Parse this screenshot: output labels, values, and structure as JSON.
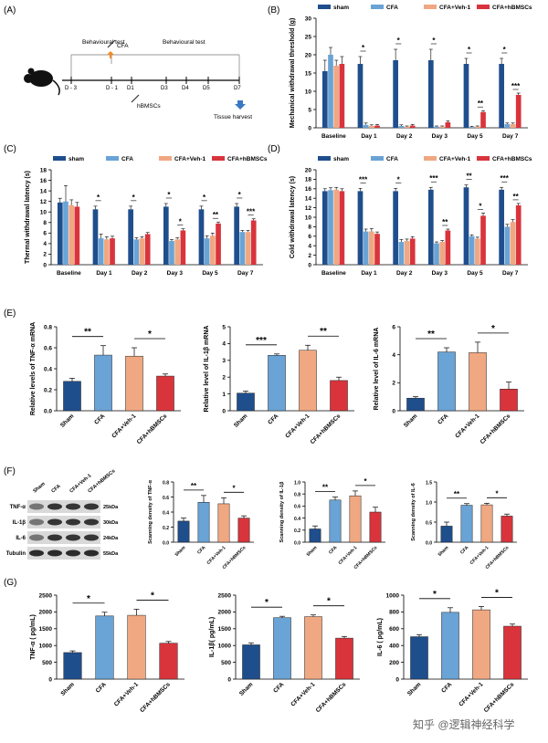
{
  "panels": {
    "a": "(A)",
    "b": "(B)",
    "c": "(C)",
    "d": "(D)",
    "e": "(E)",
    "f": "(F)",
    "g": "(G)"
  },
  "colors": {
    "sham": "#1f4e8c",
    "cfa": "#6aa3d5",
    "veh": "#f0a882",
    "hb": "#d9343c"
  },
  "timeline": {
    "behav1": "Behavioural test",
    "behav2": "Behavioural test",
    "cfa": "CFA",
    "hb": "hBMSCs",
    "harvest": "Tissue harvest",
    "days": [
      "D - 3",
      "D - 1",
      "D1",
      "D3",
      "D4",
      "D5",
      "D7"
    ]
  },
  "western": {
    "lanes": [
      "Sham",
      "CFA",
      "CFA+Veh-1",
      "CFA+hBMSCs"
    ],
    "bands": [
      {
        "name": "TNF-α",
        "size": "25kDa"
      },
      {
        "name": "IL-1β",
        "size": "30kDa"
      },
      {
        "name": "IL-6",
        "size": "24kDa"
      },
      {
        "name": "Tubulin",
        "size": "55kDa"
      }
    ]
  },
  "watermark": "知乎 @逻辑神经科学",
  "chart_data": [
    {
      "id": "B",
      "type": "bar",
      "legend": [
        "sham",
        "CFA",
        "CFA+Veh-1",
        "CFA+hBMSCs"
      ],
      "categories": [
        "Baseline",
        "Day 1",
        "Day 2",
        "Day 3",
        "Day 5",
        "Day 7"
      ],
      "ylabel": "Mechanical withdrawal threshold (g)",
      "ylim": [
        0,
        30
      ],
      "yticks": [
        0,
        5,
        10,
        15,
        20,
        25,
        30
      ],
      "series": [
        {
          "name": "sham",
          "values": [
            15.5,
            17.5,
            18.5,
            18.5,
            17.5,
            17.5
          ]
        },
        {
          "name": "CFA",
          "values": [
            20,
            0.8,
            0.5,
            0.3,
            0.2,
            1
          ]
        },
        {
          "name": "CFA+Veh-1",
          "values": [
            17,
            0.5,
            0.3,
            0.3,
            0.3,
            1
          ]
        },
        {
          "name": "CFA+hBMSCs",
          "values": [
            17.5,
            0.6,
            0.6,
            1.5,
            4.3,
            9
          ]
        }
      ],
      "errors": [
        [
          3,
          2,
          3,
          3,
          1.5,
          1.5
        ],
        [
          2,
          0.5,
          0.3,
          0.2,
          0.2,
          0.3
        ],
        [
          1.5,
          0.3,
          0.2,
          0.2,
          0.2,
          0.3
        ],
        [
          2,
          0.3,
          0.3,
          0.4,
          0.4,
          0.5
        ]
      ],
      "annotations": [
        {
          "cat": 1,
          "text": "*"
        },
        {
          "cat": 2,
          "text": "*"
        },
        {
          "cat": 3,
          "text": "*"
        },
        {
          "cat": 4,
          "text": "*"
        },
        {
          "cat": 4,
          "text": "**",
          "hb": true
        },
        {
          "cat": 5,
          "text": "*"
        },
        {
          "cat": 5,
          "text": "***",
          "hb": true
        }
      ]
    },
    {
      "id": "C",
      "type": "bar",
      "legend": [
        "sham",
        "CFA",
        "CFA+Veh-1",
        "CFA+hBMSCs"
      ],
      "categories": [
        "Baseline",
        "Day 1",
        "Day 2",
        "Day 3",
        "Day 5",
        "Day 7"
      ],
      "ylabel": "Thermal withdrawal latency (s)",
      "ylim": [
        0,
        18
      ],
      "yticks": [
        0,
        2,
        4,
        6,
        8,
        10,
        12,
        14,
        16,
        18
      ],
      "series": [
        {
          "name": "sham",
          "values": [
            11.8,
            10.5,
            10.5,
            11,
            10.5,
            11
          ]
        },
        {
          "name": "CFA",
          "values": [
            12,
            5,
            4.8,
            4.5,
            5,
            6.2
          ]
        },
        {
          "name": "CFA+Veh-1",
          "values": [
            11.3,
            4.8,
            5,
            4.8,
            5.5,
            6.2
          ]
        },
        {
          "name": "CFA+hBMSCs",
          "values": [
            11,
            5,
            5.8,
            6.5,
            7.8,
            8.4
          ]
        }
      ],
      "errors": [
        [
          0.8,
          0.6,
          0.6,
          0.6,
          0.6,
          0.6
        ],
        [
          3,
          0.8,
          0.3,
          0.3,
          0.5,
          0.3
        ],
        [
          1,
          0.5,
          0.3,
          0.3,
          0.5,
          0.3
        ],
        [
          0.8,
          0.4,
          0.3,
          0.3,
          0.3,
          0.3
        ]
      ],
      "annotations": [
        {
          "cat": 1,
          "text": "*"
        },
        {
          "cat": 2,
          "text": "*"
        },
        {
          "cat": 3,
          "text": "*"
        },
        {
          "cat": 3,
          "text": "*",
          "hb": true
        },
        {
          "cat": 4,
          "text": "*"
        },
        {
          "cat": 4,
          "text": "**",
          "hb": true
        },
        {
          "cat": 5,
          "text": "*"
        },
        {
          "cat": 5,
          "text": "***",
          "hb": true
        }
      ]
    },
    {
      "id": "D",
      "type": "bar",
      "legend": [
        "sham",
        "CFA",
        "CFA+Veh-1",
        "CFA+hBMSCs"
      ],
      "categories": [
        "Baseline",
        "Day 1",
        "Day 2",
        "Day 3",
        "Day 5",
        "Day 7"
      ],
      "ylabel": "Cold withdrawal latency (s)",
      "ylim": [
        0,
        20
      ],
      "yticks": [
        0,
        2,
        4,
        6,
        8,
        10,
        12,
        14,
        16,
        18,
        20
      ],
      "series": [
        {
          "name": "sham",
          "values": [
            15.5,
            15.5,
            15.5,
            15.8,
            16.3,
            15.8
          ]
        },
        {
          "name": "CFA",
          "values": [
            15.7,
            7,
            4.8,
            4.5,
            6,
            8
          ]
        },
        {
          "name": "CFA+Veh-1",
          "values": [
            15.8,
            7,
            5,
            4.8,
            5.5,
            9
          ]
        },
        {
          "name": "CFA+hBMSCs",
          "values": [
            15.5,
            6.5,
            5.5,
            7.2,
            10.3,
            12.5
          ]
        }
      ],
      "errors": [
        [
          0.5,
          0.6,
          0.6,
          0.5,
          0.5,
          0.5
        ],
        [
          0.5,
          0.5,
          0.5,
          0.3,
          0.3,
          0.5
        ],
        [
          0.5,
          0.6,
          0.4,
          0.3,
          0.3,
          0.5
        ],
        [
          0.5,
          0.4,
          0.4,
          0.3,
          0.6,
          0.4
        ]
      ],
      "annotations": [
        {
          "cat": 1,
          "text": "***"
        },
        {
          "cat": 2,
          "text": "*"
        },
        {
          "cat": 3,
          "text": "***"
        },
        {
          "cat": 3,
          "text": "**",
          "hb": true
        },
        {
          "cat": 4,
          "text": "**"
        },
        {
          "cat": 4,
          "text": "*",
          "hb": true
        },
        {
          "cat": 5,
          "text": "***"
        },
        {
          "cat": 5,
          "text": "**",
          "hb": true
        }
      ]
    },
    {
      "id": "E1",
      "type": "bar",
      "categories": [
        "Sham",
        "CFA",
        "CFA+Veh-1",
        "CFA+hBMSCs"
      ],
      "ylabel": "Relative levels of TNF-α mRNA",
      "ylim": [
        0,
        0.8
      ],
      "yticks": [
        0,
        0.2,
        0.4,
        0.6,
        0.8
      ],
      "tickFmt": 1,
      "values": [
        0.28,
        0.53,
        0.52,
        0.33
      ],
      "errors": [
        0.03,
        0.09,
        0.08,
        0.02
      ],
      "brackets": [
        {
          "a": 0,
          "b": 1,
          "text": "**"
        },
        {
          "a": 2,
          "b": 3,
          "text": "*"
        }
      ]
    },
    {
      "id": "E2",
      "type": "bar",
      "categories": [
        "Sham",
        "CFA",
        "CFA+Veh-1",
        "CFA+hBMSCs"
      ],
      "ylabel": "Relative level of IL-1β mRNA",
      "ylim": [
        0,
        5
      ],
      "yticks": [
        0,
        1,
        2,
        3,
        4,
        5
      ],
      "values": [
        1.05,
        3.3,
        3.6,
        1.8
      ],
      "errors": [
        0.12,
        0.08,
        0.3,
        0.2
      ],
      "brackets": [
        {
          "a": 0,
          "b": 1,
          "text": "***"
        },
        {
          "a": 2,
          "b": 3,
          "text": "**"
        }
      ]
    },
    {
      "id": "E3",
      "type": "bar",
      "categories": [
        "Sham",
        "CFA",
        "CFA+Veh-1",
        "CFA+hBMSCs"
      ],
      "ylabel": "Relative level of IL-6 mRNA",
      "ylim": [
        0,
        6
      ],
      "yticks": [
        0,
        2,
        4,
        6
      ],
      "values": [
        0.9,
        4.2,
        4.15,
        1.55
      ],
      "errors": [
        0.1,
        0.3,
        0.75,
        0.5
      ],
      "brackets": [
        {
          "a": 0,
          "b": 1,
          "text": "**"
        },
        {
          "a": 2,
          "b": 3,
          "text": "*"
        }
      ]
    },
    {
      "id": "F1",
      "type": "bar",
      "categories": [
        "Sham",
        "CFA",
        "CFA+Veh-1",
        "CFA+hBMSCs"
      ],
      "ylabel": "Scanning density of TNF-α",
      "ylim": [
        0,
        0.8
      ],
      "yticks": [
        0,
        0.2,
        0.4,
        0.6,
        0.8
      ],
      "tickFmt": 1,
      "values": [
        0.28,
        0.53,
        0.51,
        0.32
      ],
      "errors": [
        0.04,
        0.09,
        0.08,
        0.03
      ],
      "brackets": [
        {
          "a": 0,
          "b": 1,
          "text": "**"
        },
        {
          "a": 2,
          "b": 3,
          "text": "*"
        }
      ]
    },
    {
      "id": "F2",
      "type": "bar",
      "categories": [
        "Sham",
        "CFA",
        "CFA+Veh-1",
        "CFA+hBMSCs"
      ],
      "ylabel": "Scanning density of IL-1β",
      "ylim": [
        0,
        1.0
      ],
      "yticks": [
        0,
        0.2,
        0.4,
        0.6,
        0.8,
        1.0
      ],
      "tickFmt": 1,
      "values": [
        0.22,
        0.7,
        0.77,
        0.5
      ],
      "errors": [
        0.05,
        0.05,
        0.08,
        0.08
      ],
      "brackets": [
        {
          "a": 0,
          "b": 1,
          "text": "**"
        },
        {
          "a": 2,
          "b": 3,
          "text": "*"
        }
      ]
    },
    {
      "id": "F3",
      "type": "bar",
      "categories": [
        "Sham",
        "CFA",
        "CFA+Veh-1",
        "CFA+hBMSCs"
      ],
      "ylabel": "Scanning density of IL-6",
      "ylim": [
        0,
        1.5
      ],
      "yticks": [
        0,
        0.5,
        1.0,
        1.5
      ],
      "tickFmt": 1,
      "values": [
        0.4,
        0.92,
        0.93,
        0.65
      ],
      "errors": [
        0.1,
        0.04,
        0.04,
        0.05
      ],
      "brackets": [
        {
          "a": 0,
          "b": 1,
          "text": "**"
        },
        {
          "a": 2,
          "b": 3,
          "text": "*"
        }
      ]
    },
    {
      "id": "G1",
      "type": "bar",
      "categories": [
        "Sham",
        "CFA",
        "CFA+Veh-1",
        "CFA+hBMSCs"
      ],
      "ylabel": "TNF-α ( pg/mL)",
      "ylim": [
        0,
        2500
      ],
      "yticks": [
        0,
        500,
        1000,
        1500,
        2000,
        2500
      ],
      "values": [
        790,
        1880,
        1900,
        1070
      ],
      "errors": [
        50,
        110,
        180,
        50
      ],
      "brackets": [
        {
          "a": 0,
          "b": 1,
          "text": "*"
        },
        {
          "a": 2,
          "b": 3,
          "text": "*"
        }
      ]
    },
    {
      "id": "G2",
      "type": "bar",
      "categories": [
        "Sham",
        "CFA",
        "CFA+Veh-1",
        "CFA+hBMSCs"
      ],
      "ylabel": "IL-1β( pg/mL)",
      "ylim": [
        0,
        2500
      ],
      "yticks": [
        0,
        500,
        1000,
        1500,
        2000,
        2500
      ],
      "values": [
        1020,
        1830,
        1860,
        1220
      ],
      "errors": [
        60,
        40,
        50,
        50
      ],
      "brackets": [
        {
          "a": 0,
          "b": 1,
          "text": "*"
        },
        {
          "a": 2,
          "b": 3,
          "text": "*"
        }
      ]
    },
    {
      "id": "G3",
      "type": "bar",
      "categories": [
        "Sham",
        "CFA",
        "CFA+Veh-1",
        "CFA+hBMSCs"
      ],
      "ylabel": "IL-6 ( pg/mL)",
      "ylim": [
        0,
        1000
      ],
      "yticks": [
        0,
        200,
        400,
        600,
        800,
        1000
      ],
      "values": [
        505,
        795,
        825,
        630
      ],
      "errors": [
        25,
        55,
        40,
        25
      ],
      "brackets": [
        {
          "a": 0,
          "b": 1,
          "text": "*"
        },
        {
          "a": 2,
          "b": 3,
          "text": "*"
        }
      ]
    }
  ]
}
